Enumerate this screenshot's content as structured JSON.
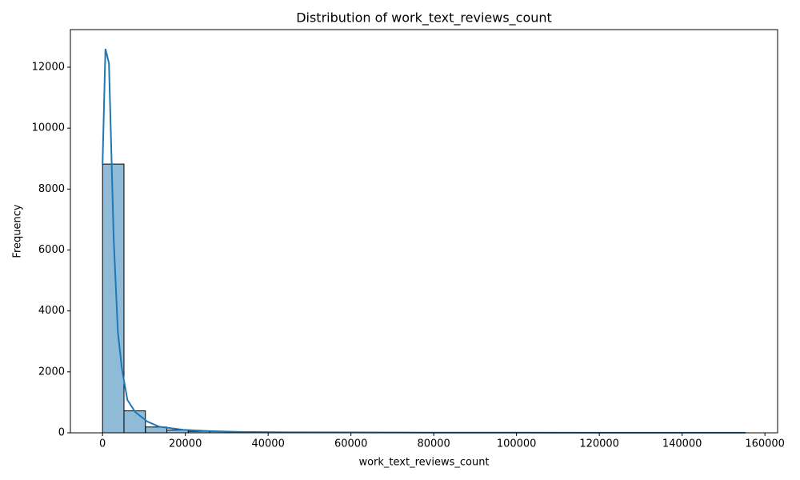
{
  "chart_data": {
    "type": "histogram",
    "title": "Distribution of work_text_reviews_count",
    "x_label": "work_text_reviews_count",
    "y_label": "Frequency",
    "bins": [
      0,
      5177,
      10353,
      15530,
      20707,
      25883,
      31060,
      36237,
      41413,
      46590,
      51767,
      56943,
      62120,
      67297,
      72473,
      77650,
      82827,
      88003,
      93180,
      98357,
      103533,
      108710,
      113887,
      119063,
      124240,
      129417,
      134593,
      139770,
      144947,
      150123,
      155300
    ],
    "counts": [
      8820,
      720,
      190,
      90,
      50,
      40,
      25,
      15,
      15,
      10,
      8,
      6,
      5,
      3,
      3,
      2,
      2,
      1,
      1,
      1,
      1,
      0,
      0,
      1,
      0,
      0,
      0,
      0,
      0,
      1
    ],
    "color": "#1f77b4",
    "kde": {
      "x": [
        0,
        700,
        1550,
        2700,
        3700,
        4650,
        6000,
        7900,
        10800,
        13700,
        19500,
        25300,
        33000,
        45000,
        60000,
        80000,
        100000,
        120000,
        140000,
        155300
      ],
      "values": [
        8820,
        12600,
        12130,
        6330,
        3310,
        2130,
        1080,
        680,
        370,
        200,
        100,
        60,
        30,
        18,
        12,
        8,
        6,
        4,
        3,
        2
      ]
    },
    "xlim": [
      -7765,
      163065
    ],
    "ylim": [
      0,
      13234
    ],
    "xticks": [
      0,
      20000,
      40000,
      60000,
      80000,
      100000,
      120000,
      140000,
      160000
    ],
    "yticks": [
      0,
      2000,
      4000,
      6000,
      8000,
      10000,
      12000
    ]
  }
}
